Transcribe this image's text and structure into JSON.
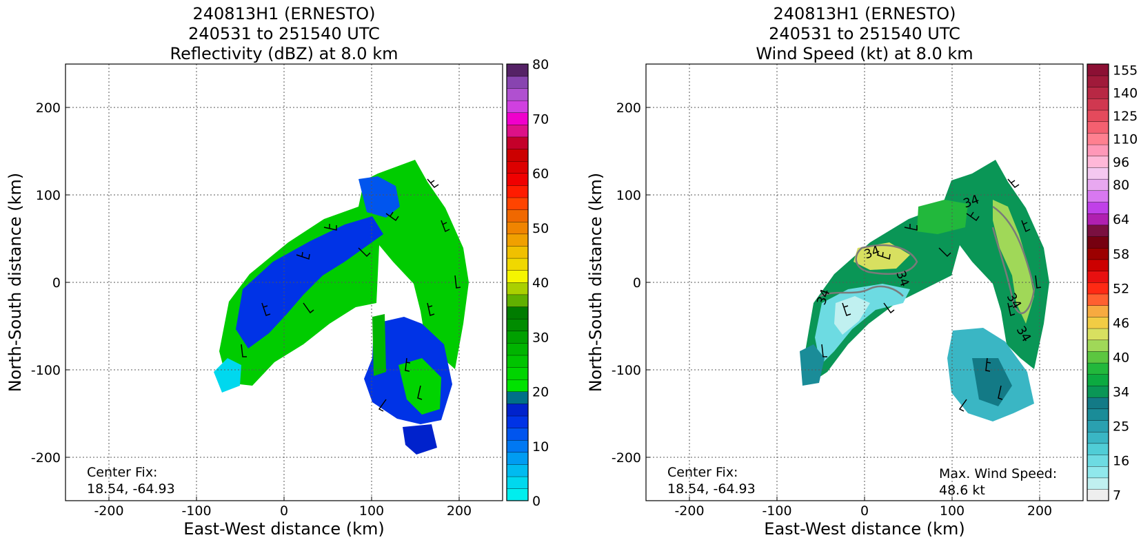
{
  "chart_data": [
    {
      "type": "heatmap",
      "title_lines": [
        "240813H1 (ERNESTO)",
        "240531 to 251540 UTC",
        "Reflectivity (dBZ) at 8.0 km"
      ],
      "xlabel": "East-West distance (km)",
      "ylabel": "North-South distance (km)",
      "xlim": [
        -250,
        250
      ],
      "ylim": [
        -250,
        250
      ],
      "xticks": [
        -200,
        -100,
        0,
        100,
        200
      ],
      "yticks": [
        -200,
        -100,
        0,
        100,
        200
      ],
      "grid": true,
      "colorbar": {
        "min": 0,
        "max": 80,
        "step": 2.5,
        "tick_values": [
          0,
          10,
          20,
          30,
          40,
          50,
          60,
          70,
          80
        ],
        "tick_labels": [
          "0",
          "10",
          "20",
          "30",
          "40",
          "50",
          "60",
          "70",
          "80"
        ],
        "colors": [
          "#00eeee",
          "#00d8ee",
          "#00bbf0",
          "#009cf2",
          "#0078f2",
          "#0055ee",
          "#0033e6",
          "#0022cc",
          "#007088",
          "#00e200",
          "#00d400",
          "#00c400",
          "#00b400",
          "#00a000",
          "#008c00",
          "#007c00",
          "#60b000",
          "#aad000",
          "#f5f500",
          "#f0d800",
          "#f0c000",
          "#f0a000",
          "#f08400",
          "#f06800",
          "#ff4400",
          "#ff1c00",
          "#f00000",
          "#dd0000",
          "#cc0000",
          "#c4002a",
          "#dd1188",
          "#f000cc",
          "#d040e0",
          "#b050d0",
          "#8844b0",
          "#552266"
        ]
      },
      "annotations": [
        {
          "text_lines": [
            "Center Fix:",
            "18.54, -64.93"
          ],
          "position": "bottom-left"
        }
      ]
    },
    {
      "type": "heatmap",
      "title_lines": [
        "240813H1 (ERNESTO)",
        "240531 to 251540 UTC",
        "Wind Speed (kt) at 8.0 km"
      ],
      "xlabel": "East-West distance (km)",
      "ylabel": "North-South distance (km)",
      "xlim": [
        -250,
        250
      ],
      "ylim": [
        -250,
        250
      ],
      "xticks": [
        -200,
        -100,
        0,
        100,
        200
      ],
      "yticks": [
        -200,
        -100,
        0,
        100,
        200
      ],
      "grid": true,
      "contour_label": "34",
      "colorbar": {
        "tick_labels": [
          "7",
          "16",
          "25",
          "34",
          "40",
          "46",
          "52",
          "58",
          "64",
          "80",
          "96",
          "110",
          "125",
          "140",
          "155"
        ],
        "colors": [
          "#eeeeee",
          "#c0f0f0",
          "#90e8ec",
          "#6ddbe2",
          "#50cdd6",
          "#3ab6c4",
          "#2aa0b0",
          "#1a8c98",
          "#137a86",
          "#0a9656",
          "#0caa40",
          "#22b83c",
          "#5cc640",
          "#a0d858",
          "#d8e060",
          "#f2cc44",
          "#f7aa40",
          "#ff6030",
          "#ff2a14",
          "#e81010",
          "#cc0000",
          "#9c0000",
          "#760010",
          "#7a1040",
          "#b020b0",
          "#c040e8",
          "#d878f0",
          "#e8a8f0",
          "#f4c8f0",
          "#ffb8d8",
          "#ff98b8",
          "#ff8090",
          "#f46070",
          "#e44a5c",
          "#d03850",
          "#b82844",
          "#a01a3a",
          "#8c1034"
        ]
      },
      "annotations": [
        {
          "text_lines": [
            "Center Fix:",
            "18.54, -64.93"
          ],
          "position": "bottom-left"
        },
        {
          "text_lines": [
            "Max. Wind Speed:",
            "48.6 kt"
          ],
          "position": "bottom-right"
        }
      ]
    }
  ]
}
